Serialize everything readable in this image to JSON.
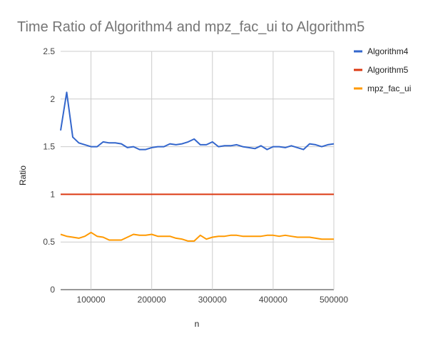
{
  "chart_data": {
    "type": "line",
    "title": "Time Ratio of Algorithm4 and mpz_fac_ui to Algorithm5",
    "xlabel": "n",
    "ylabel": "Ratio",
    "xlim": [
      50000,
      500000
    ],
    "ylim": [
      0,
      2.5
    ],
    "xticks": [
      100000,
      200000,
      300000,
      400000,
      500000
    ],
    "xtick_labels": [
      "100000",
      "200000",
      "300000",
      "400000",
      "500000"
    ],
    "yticks": [
      0,
      0.5,
      1,
      1.5,
      2,
      2.5
    ],
    "ytick_labels": [
      "0",
      "0.5",
      "1",
      "1.5",
      "2",
      "2.5"
    ],
    "grid": "vertical and horizontal major gridlines",
    "legend_position": "right",
    "x": [
      50000,
      60000,
      70000,
      80000,
      90000,
      100000,
      110000,
      120000,
      130000,
      140000,
      150000,
      160000,
      170000,
      180000,
      190000,
      200000,
      210000,
      220000,
      230000,
      240000,
      250000,
      260000,
      270000,
      280000,
      290000,
      300000,
      310000,
      320000,
      330000,
      340000,
      350000,
      360000,
      370000,
      380000,
      390000,
      400000,
      410000,
      420000,
      430000,
      440000,
      450000,
      460000,
      470000,
      480000,
      490000,
      500000
    ],
    "series": [
      {
        "name": "Algorithm4",
        "color": "#3366cc",
        "values": [
          1.67,
          2.07,
          1.6,
          1.54,
          1.52,
          1.5,
          1.5,
          1.55,
          1.54,
          1.54,
          1.53,
          1.49,
          1.5,
          1.47,
          1.47,
          1.49,
          1.5,
          1.5,
          1.53,
          1.52,
          1.53,
          1.55,
          1.58,
          1.52,
          1.52,
          1.55,
          1.5,
          1.51,
          1.51,
          1.52,
          1.5,
          1.49,
          1.48,
          1.51,
          1.47,
          1.5,
          1.5,
          1.49,
          1.51,
          1.49,
          1.47,
          1.53,
          1.52,
          1.5,
          1.52,
          1.53
        ]
      },
      {
        "name": "Algorithm5",
        "color": "#dc3912",
        "values": [
          1,
          1,
          1,
          1,
          1,
          1,
          1,
          1,
          1,
          1,
          1,
          1,
          1,
          1,
          1,
          1,
          1,
          1,
          1,
          1,
          1,
          1,
          1,
          1,
          1,
          1,
          1,
          1,
          1,
          1,
          1,
          1,
          1,
          1,
          1,
          1,
          1,
          1,
          1,
          1,
          1,
          1,
          1,
          1,
          1,
          1
        ]
      },
      {
        "name": "mpz_fac_ui",
        "color": "#ff9900",
        "values": [
          0.58,
          0.56,
          0.55,
          0.54,
          0.56,
          0.6,
          0.56,
          0.55,
          0.52,
          0.52,
          0.52,
          0.55,
          0.58,
          0.57,
          0.57,
          0.58,
          0.56,
          0.56,
          0.56,
          0.54,
          0.53,
          0.51,
          0.51,
          0.57,
          0.53,
          0.55,
          0.56,
          0.56,
          0.57,
          0.57,
          0.56,
          0.56,
          0.56,
          0.56,
          0.57,
          0.57,
          0.56,
          0.57,
          0.56,
          0.55,
          0.55,
          0.55,
          0.54,
          0.53,
          0.53,
          0.53
        ]
      }
    ]
  }
}
